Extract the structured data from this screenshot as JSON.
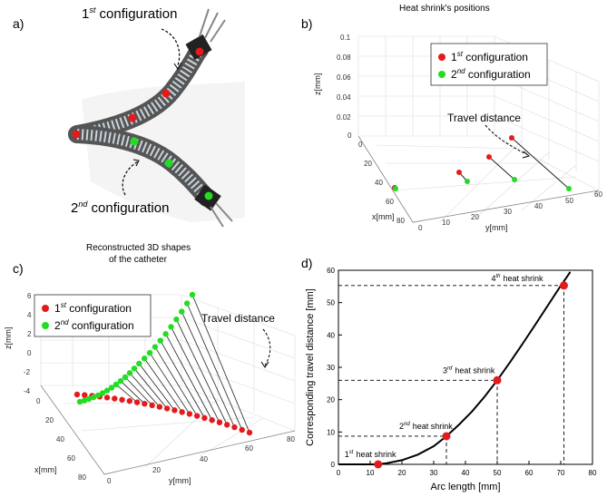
{
  "panels": {
    "a": {
      "label": "a)",
      "first_label": "1",
      "first_sup": "st",
      "first_word": " configuration",
      "second_label": "2",
      "second_sup": "nd",
      "second_word": " configuration"
    },
    "b": {
      "label": "b)",
      "title": "Heat shrink's positions",
      "legend": [
        {
          "num": "1",
          "sup": "st",
          "text": " configuration",
          "color": "#e41a1c"
        },
        {
          "num": "2",
          "sup": "nd",
          "text": " configuration",
          "color": "#22dd22"
        }
      ],
      "annotation": "Travel distance",
      "zlabel": "z[mm]",
      "xlabel": "x[mm]",
      "ylabel": "y[mm]",
      "zticks": [
        "0.1",
        "0.08",
        "0.06",
        "0.04",
        "0.02",
        "0"
      ],
      "xticks": [
        "0",
        "20",
        "40",
        "60",
        "80"
      ],
      "yticks": [
        "0",
        "10",
        "20",
        "30",
        "40",
        "50",
        "60"
      ]
    },
    "c": {
      "label": "c)",
      "title_line1": "Reconstructed 3D shapes",
      "title_line2": "of the catheter",
      "legend": [
        {
          "num": "1",
          "sup": "st",
          "text": " configuration",
          "color": "#e41a1c"
        },
        {
          "num": "2",
          "sup": "nd",
          "text": " configuration",
          "color": "#22dd22"
        }
      ],
      "annotation": "Travel distance",
      "zlabel": "z[mm]",
      "xlabel": "x[mm]",
      "ylabel": "y[mm]",
      "zticks": [
        "6",
        "4",
        "2",
        "0",
        "-2",
        "-4"
      ],
      "xticks": [
        "0",
        "20",
        "40",
        "60",
        "80"
      ],
      "yticks": [
        "0",
        "20",
        "40",
        "60",
        "80"
      ]
    },
    "d": {
      "label": "d)",
      "xlabel": "Arc length [mm]",
      "ylabel": "Corresponding travel distance [mm]",
      "annotations": [
        {
          "num": "1",
          "sup": "st",
          "text": "heat shrink"
        },
        {
          "num": "2",
          "sup": "nd",
          "text": "heat shrink"
        },
        {
          "num": "3",
          "sup": "rd",
          "text": "heat shrink"
        },
        {
          "num": "4",
          "sup": "th",
          "text": "heat shrink"
        }
      ]
    }
  },
  "chart_data": {
    "type": "line",
    "xlabel": "Arc length [mm]",
    "ylabel": "Corresponding travel distance [mm]",
    "xlim": [
      0,
      80
    ],
    "ylim": [
      0,
      60
    ],
    "xticks": [
      0,
      10,
      20,
      30,
      40,
      50,
      60,
      70,
      80
    ],
    "yticks": [
      0,
      10,
      20,
      30,
      40,
      50,
      60
    ],
    "curve": {
      "x": [
        0,
        10,
        12,
        15,
        20,
        25,
        30,
        34,
        38,
        42,
        46,
        50,
        54,
        58,
        62,
        66,
        70,
        72,
        73
      ],
      "y": [
        0,
        0,
        0,
        0.3,
        1.3,
        3.0,
        5.6,
        8.7,
        12.3,
        16.3,
        20.9,
        26.0,
        31.5,
        37.3,
        43.2,
        49.2,
        55.2,
        58.0,
        59.5
      ],
      "color": "#000000"
    },
    "points": {
      "x": [
        12.5,
        34,
        50,
        71
      ],
      "y": [
        0,
        8.7,
        26,
        55.3
      ],
      "color": "#e41a1c"
    }
  }
}
